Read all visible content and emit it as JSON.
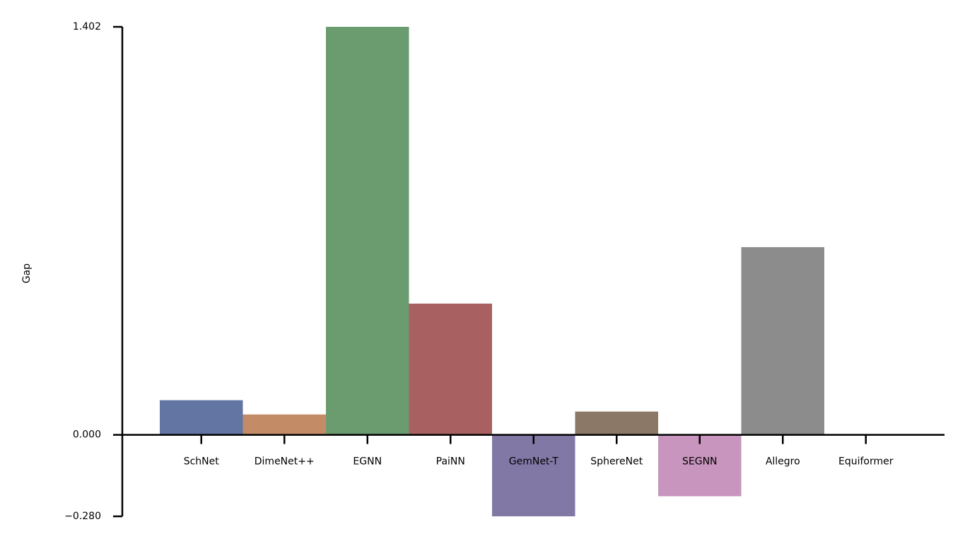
{
  "chart_data": {
    "type": "bar",
    "ylabel": "Gap",
    "categories": [
      "SchNet",
      "DimeNet++",
      "EGNN",
      "PaiNN",
      "GemNet-T",
      "SphereNet",
      "SEGNN",
      "Allegro",
      "Equiformer"
    ],
    "values": [
      0.119,
      0.07,
      1.402,
      0.451,
      -0.28,
      0.08,
      -0.211,
      0.645,
      0
    ],
    "colors": [
      "#6275a3",
      "#c38c67",
      "#6b9c70",
      "#a86160",
      "#8278a6",
      "#8c7866",
      "#c795bd",
      "#8c8c8c",
      "#ccb974"
    ],
    "ylim": [
      -0.28,
      1.402
    ],
    "yticks": [
      {
        "value": -0.28,
        "label": "−0.280"
      },
      {
        "value": 0,
        "label": "0.000"
      },
      1.402
    ],
    "grid": false
  }
}
